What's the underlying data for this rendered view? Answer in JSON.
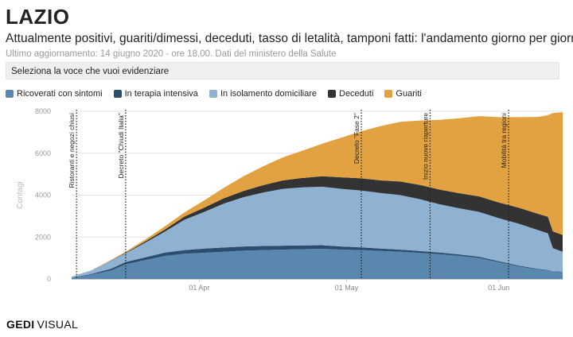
{
  "header": {
    "title": "LAZIO",
    "subtitle": "Attualmente positivi, guariti/dimessi, deceduti, tasso di letalità, tamponi fatti: l'andamento giorno per giorno",
    "updated": "Ultimo aggiornamento: 14 giugno 2020 - ore 18,00. Dati del ministero della Salute"
  },
  "selector": {
    "label": "Seleziona la voce che vuoi evidenziare"
  },
  "legend": [
    {
      "name": "Ricoverati con sintomi",
      "color": "#5a87ae"
    },
    {
      "name": "In terapia intensiva",
      "color": "#2c4d70"
    },
    {
      "name": "In isolamento domiciliare",
      "color": "#8fb2d3"
    },
    {
      "name": "Deceduti",
      "color": "#333333"
    },
    {
      "name": "Guariti",
      "color": "#e3a242"
    }
  ],
  "footer": {
    "brand": "GEDI",
    "suffix": "VISUAL"
  },
  "chart_data": {
    "type": "area",
    "stacked": true,
    "ylabel": "Contagi",
    "ylim": [
      0,
      8000
    ],
    "yticks": [
      0,
      2000,
      4000,
      6000,
      8000
    ],
    "x_start": "2020-03-06",
    "x_end": "2020-06-14",
    "xticks": [
      {
        "date": "2020-04-01",
        "label": "01 Apr"
      },
      {
        "date": "2020-05-01",
        "label": "01 May"
      },
      {
        "date": "2020-06-01",
        "label": "01 Jun"
      }
    ],
    "x": [
      "2020-03-06",
      "2020-03-10",
      "2020-03-14",
      "2020-03-17",
      "2020-03-21",
      "2020-03-25",
      "2020-03-29",
      "2020-04-02",
      "2020-04-06",
      "2020-04-10",
      "2020-04-14",
      "2020-04-18",
      "2020-04-22",
      "2020-04-26",
      "2020-04-30",
      "2020-05-04",
      "2020-05-08",
      "2020-05-12",
      "2020-05-16",
      "2020-05-20",
      "2020-05-24",
      "2020-05-28",
      "2020-06-01",
      "2020-06-05",
      "2020-06-09",
      "2020-06-11",
      "2020-06-12",
      "2020-06-14"
    ],
    "series": [
      {
        "name": "Ricoverati con sintomi",
        "color": "#5a87ae",
        "values": [
          50,
          200,
          400,
          700,
          900,
          1100,
          1200,
          1250,
          1300,
          1350,
          1380,
          1400,
          1420,
          1440,
          1400,
          1380,
          1340,
          1300,
          1240,
          1180,
          1100,
          1000,
          800,
          600,
          450,
          400,
          350,
          330
        ]
      },
      {
        "name": "In terapia intensiva",
        "color": "#2c4d70",
        "values": [
          10,
          40,
          90,
          110,
          130,
          160,
          180,
          200,
          200,
          200,
          195,
          190,
          185,
          170,
          150,
          130,
          110,
          100,
          90,
          80,
          70,
          60,
          50,
          40,
          30,
          25,
          20,
          20
        ]
      },
      {
        "name": "In isolamento domiciliare",
        "color": "#8fb2d3",
        "values": [
          40,
          160,
          380,
          420,
          700,
          1000,
          1450,
          1750,
          2100,
          2350,
          2550,
          2710,
          2765,
          2790,
          2750,
          2710,
          2650,
          2600,
          2470,
          2300,
          2200,
          2140,
          2050,
          2000,
          1850,
          1750,
          1100,
          950
        ]
      },
      {
        "name": "Deceduti",
        "color": "#333333",
        "values": [
          2,
          5,
          10,
          20,
          60,
          100,
          150,
          200,
          250,
          300,
          350,
          400,
          450,
          500,
          550,
          580,
          600,
          650,
          680,
          700,
          720,
          740,
          750,
          760,
          780,
          790,
          800,
          800
        ]
      },
      {
        "name": "Guariti",
        "color": "#e3a242",
        "values": [
          0,
          5,
          20,
          50,
          100,
          150,
          200,
          350,
          500,
          700,
          900,
          1100,
          1300,
          1550,
          1900,
          2250,
          2600,
          2850,
          3080,
          3330,
          3580,
          3830,
          4070,
          4320,
          4620,
          4850,
          5650,
          5850
        ]
      }
    ],
    "annotations": [
      {
        "date": "2020-03-07",
        "label": "Ristoranti e negozi chiusi"
      },
      {
        "date": "2020-03-17",
        "label": "Decreto \"Chiudi Italia\""
      },
      {
        "date": "2020-05-04",
        "label": "Decreto \"Fase 2\""
      },
      {
        "date": "2020-05-18",
        "label": "Inizio nuove riaperture"
      },
      {
        "date": "2020-06-03",
        "label": "Mobilità tra regioni"
      }
    ]
  }
}
